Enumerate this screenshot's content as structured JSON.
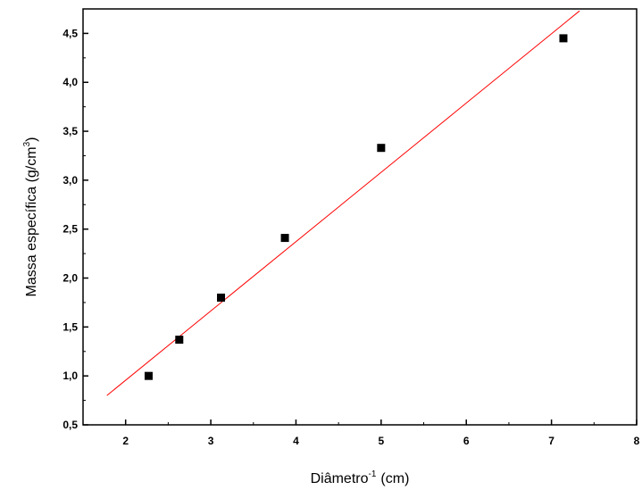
{
  "chart_data": {
    "type": "scatter",
    "xlabel": "Diâmetro",
    "xlabel_superscript": "-1",
    "xlabel_unit": "(cm)",
    "ylabel": "Massa específica (g/cm",
    "ylabel_superscript": "3",
    "ylabel_close": ")",
    "xlim": [
      1.5,
      8
    ],
    "ylim": [
      0.5,
      4.75
    ],
    "x_ticks": [
      2,
      3,
      4,
      5,
      6,
      7,
      8
    ],
    "x_tick_labels": [
      "2",
      "3",
      "4",
      "5",
      "6",
      "7",
      "8"
    ],
    "y_ticks": [
      0.5,
      1.0,
      1.5,
      2.0,
      2.5,
      3.0,
      3.5,
      4.0,
      4.5
    ],
    "y_tick_labels": [
      "0,5",
      "1,0",
      "1,5",
      "2,0",
      "2,5",
      "3,0",
      "3,5",
      "4,0",
      "4,5"
    ],
    "grid": false,
    "legend": "none",
    "series": [
      {
        "marker": "square",
        "color": "#000000",
        "points": [
          {
            "x": 2.27,
            "y": 1.0
          },
          {
            "x": 2.63,
            "y": 1.37
          },
          {
            "x": 3.12,
            "y": 1.8
          },
          {
            "x": 3.87,
            "y": 2.41
          },
          {
            "x": 5.0,
            "y": 3.33
          },
          {
            "x": 7.14,
            "y": 4.45
          }
        ]
      }
    ],
    "fit_line": {
      "color": "#ff0000",
      "x": [
        1.78,
        7.33
      ],
      "y": [
        0.8,
        4.73
      ]
    }
  }
}
